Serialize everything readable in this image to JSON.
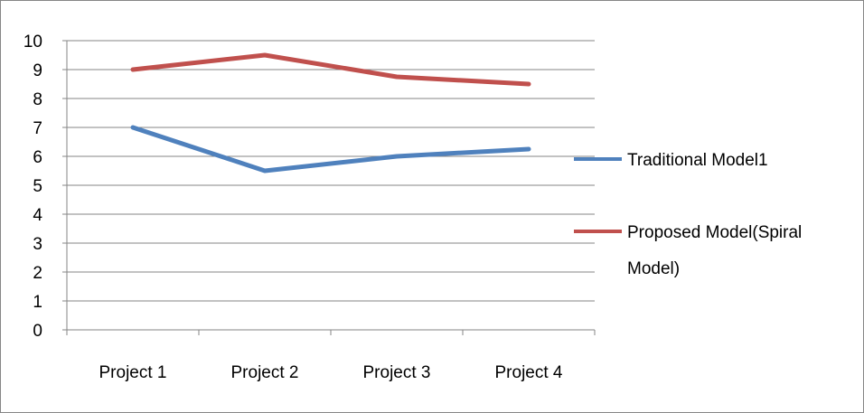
{
  "chart_data": {
    "type": "line",
    "title": "",
    "xlabel": "",
    "ylabel": "",
    "categories": [
      "Project 1",
      "Project 2",
      "Project 3",
      "Project 4"
    ],
    "ylim": [
      0,
      10
    ],
    "yticks": [
      "0",
      "1",
      "2",
      "3",
      "4",
      "5",
      "6",
      "7",
      "8",
      "9",
      "10"
    ],
    "grid": "horizontal",
    "legend_position": "right",
    "series": [
      {
        "name": "Traditional Model1",
        "legend_lines": [
          "Traditional Model1"
        ],
        "color": "#4F81BD",
        "values": [
          7.0,
          5.5,
          6.0,
          6.25
        ]
      },
      {
        "name": "Proposed Model(Spiral Model)",
        "legend_lines": [
          "Proposed Model(Spiral",
          "Model)"
        ],
        "color": "#C0504D",
        "values": [
          9.0,
          9.5,
          8.75,
          8.5
        ]
      }
    ]
  }
}
